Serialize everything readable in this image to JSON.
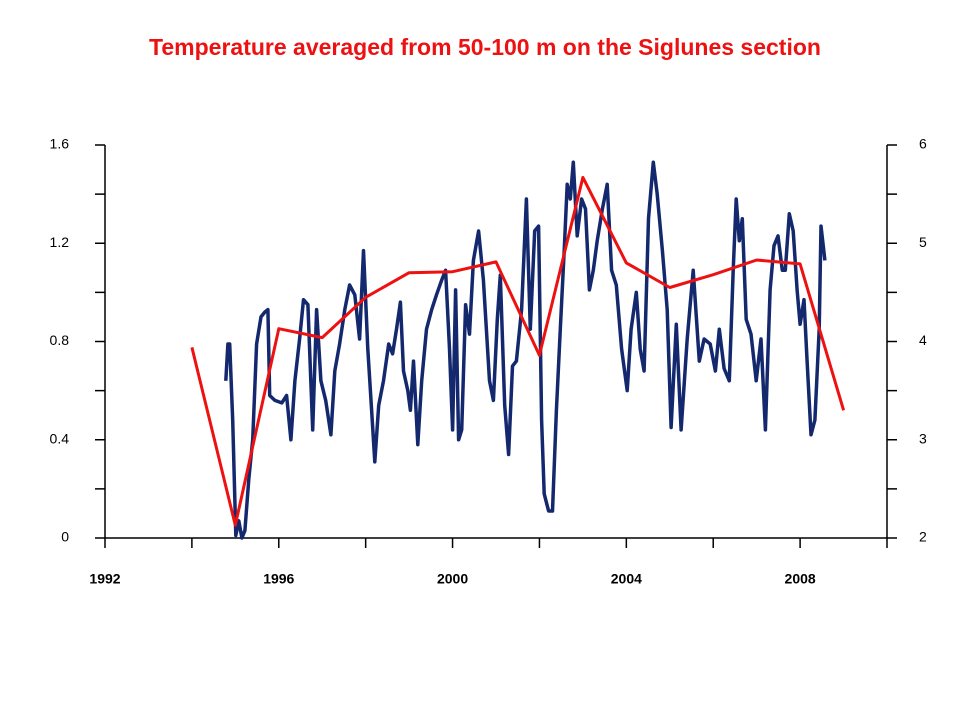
{
  "chart_data": {
    "type": "line",
    "title": "Temperature averaged from 50-100 m on the Siglunes section",
    "xlim": [
      1992,
      2010
    ],
    "xticks": [
      1992,
      1996,
      2000,
      2004,
      2008
    ],
    "xminor_ticks": [
      1994,
      1998,
      2002,
      2006,
      2010
    ],
    "ylim": [
      0,
      1.6
    ],
    "yticks": [
      0,
      0.4,
      0.8,
      1.2,
      1.6
    ],
    "yminor_ticks": [
      0.2,
      0.6,
      1.0,
      1.4
    ],
    "y2lim": [
      2,
      6
    ],
    "y2ticks": [
      2,
      3,
      4,
      5,
      6
    ],
    "y2minor_ticks": [
      2.5,
      3.5,
      4.5,
      5.5
    ],
    "series": [
      {
        "color": "#14286e",
        "axis": "y",
        "x": [
          1994.78,
          1994.83,
          1994.87,
          1994.94,
          1995.01,
          1995.08,
          1995.15,
          1995.22,
          1995.31,
          1995.4,
          1995.49,
          1995.59,
          1995.68,
          1995.75,
          1995.79,
          1995.91,
          1996.07,
          1996.18,
          1996.28,
          1996.37,
          1996.48,
          1996.57,
          1996.67,
          1996.78,
          1996.87,
          1996.97,
          1997.08,
          1997.2,
          1997.29,
          1997.4,
          1997.52,
          1997.63,
          1997.75,
          1997.86,
          1997.95,
          1998.05,
          1998.11,
          1998.21,
          1998.3,
          1998.41,
          1998.53,
          1998.62,
          1998.71,
          1998.8,
          1998.87,
          1998.97,
          1999.03,
          1999.1,
          1999.2,
          1999.29,
          1999.4,
          1999.52,
          1999.63,
          1999.75,
          1999.84,
          1999.93,
          2000.0,
          2000.07,
          2000.14,
          2000.21,
          2000.3,
          2000.39,
          2000.48,
          2000.6,
          2000.71,
          2000.85,
          2000.94,
          2001.03,
          2001.1,
          2001.2,
          2001.29,
          2001.38,
          2001.47,
          2001.59,
          2001.7,
          2001.79,
          2001.89,
          2001.98,
          2002.05,
          2002.11,
          2002.21,
          2002.3,
          2002.39,
          2002.48,
          2002.57,
          2002.64,
          2002.71,
          2002.78,
          2002.87,
          2002.97,
          2003.06,
          2003.15,
          2003.24,
          2003.33,
          2003.45,
          2003.56,
          2003.66,
          2003.77,
          2003.89,
          2004.02,
          2004.11,
          2004.23,
          2004.32,
          2004.41,
          2004.51,
          2004.62,
          2004.71,
          2004.83,
          2004.94,
          2005.03,
          2005.15,
          2005.26,
          2005.4,
          2005.54,
          2005.68,
          2005.79,
          2005.93,
          2006.05,
          2006.14,
          2006.25,
          2006.37,
          2006.46,
          2006.53,
          2006.6,
          2006.67,
          2006.76,
          2006.87,
          2006.99,
          2007.1,
          2007.2,
          2007.31,
          2007.4,
          2007.49,
          2007.59,
          2007.66,
          2007.75,
          2007.84,
          2007.93,
          2008.0,
          2008.09,
          2008.16,
          2008.25,
          2008.34,
          2008.44,
          2008.48,
          2008.57
        ],
        "values": [
          0.64,
          0.79,
          0.79,
          0.48,
          0.01,
          0.07,
          0.0,
          0.03,
          0.24,
          0.4,
          0.79,
          0.9,
          0.92,
          0.93,
          0.58,
          0.56,
          0.55,
          0.58,
          0.4,
          0.64,
          0.81,
          0.97,
          0.95,
          0.44,
          0.93,
          0.64,
          0.56,
          0.42,
          0.68,
          0.79,
          0.93,
          1.03,
          0.99,
          0.81,
          1.17,
          0.77,
          0.6,
          0.31,
          0.54,
          0.64,
          0.79,
          0.75,
          0.85,
          0.96,
          0.68,
          0.6,
          0.52,
          0.72,
          0.38,
          0.64,
          0.85,
          0.93,
          0.99,
          1.05,
          1.09,
          0.77,
          0.44,
          1.01,
          0.4,
          0.44,
          0.95,
          0.83,
          1.13,
          1.25,
          1.05,
          0.64,
          0.56,
          0.89,
          1.07,
          0.54,
          0.34,
          0.7,
          0.72,
          0.93,
          1.38,
          0.85,
          1.25,
          1.27,
          0.48,
          0.18,
          0.11,
          0.11,
          0.52,
          0.85,
          1.17,
          1.44,
          1.38,
          1.53,
          1.23,
          1.38,
          1.34,
          1.01,
          1.09,
          1.21,
          1.34,
          1.44,
          1.09,
          1.03,
          0.77,
          0.6,
          0.85,
          1.0,
          0.77,
          0.68,
          1.3,
          1.53,
          1.4,
          1.17,
          0.93,
          0.45,
          0.87,
          0.44,
          0.81,
          1.09,
          0.72,
          0.81,
          0.79,
          0.68,
          0.85,
          0.69,
          0.64,
          1.09,
          1.38,
          1.21,
          1.3,
          0.89,
          0.83,
          0.64,
          0.81,
          0.44,
          1.01,
          1.19,
          1.23,
          1.09,
          1.09,
          1.32,
          1.25,
          1.01,
          0.87,
          0.97,
          0.72,
          0.42,
          0.48,
          0.85,
          1.27,
          1.13
        ]
      },
      {
        "color": "#ee1111",
        "axis": "y2",
        "x": [
          1994,
          1995,
          1996,
          1997,
          1998,
          1999,
          2000,
          2001,
          2002,
          2003,
          2004,
          2005,
          2006,
          2007,
          2008,
          2009
        ],
        "values": [
          3.94,
          2.13,
          4.13,
          4.04,
          4.45,
          4.7,
          4.71,
          4.81,
          3.86,
          5.67,
          4.8,
          4.55,
          4.68,
          4.83,
          4.79,
          3.3
        ]
      }
    ]
  }
}
